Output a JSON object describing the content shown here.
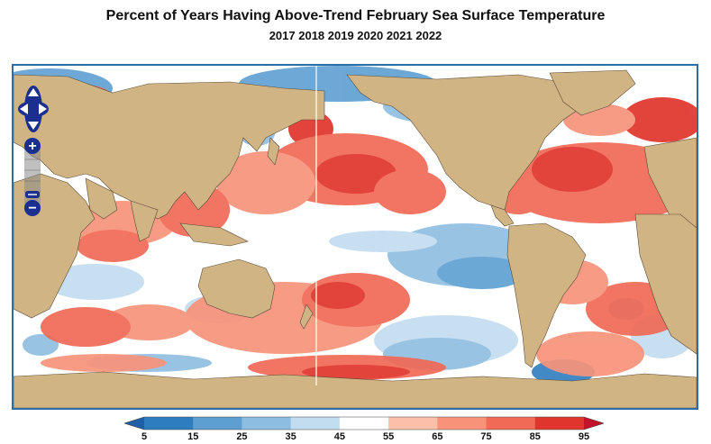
{
  "title": "Percent of Years Having Above-Trend February Sea Surface Temperature",
  "subtitle": "2017 2018 2019 2020 2021 2022",
  "map": {
    "land_color": "#d1b483",
    "ocean_base_color": "#ffffff",
    "controls": {
      "pan_up_icon": "arrow-up-icon",
      "pan_down_icon": "arrow-down-icon",
      "pan_left_icon": "arrow-left-icon",
      "pan_right_icon": "arrow-right-icon",
      "zoom_in_symbol": "+",
      "zoom_out_symbol": "−"
    }
  },
  "legend": {
    "colors": [
      "#2e7dbf",
      "#5d9fd1",
      "#8dbde0",
      "#c2dcf0",
      "#ffffff",
      "#fbc0aa",
      "#f8937a",
      "#f06a55",
      "#e0352c"
    ],
    "labels": [
      "5",
      "15",
      "25",
      "35",
      "45",
      "55",
      "65",
      "75",
      "85",
      "95"
    ]
  }
}
